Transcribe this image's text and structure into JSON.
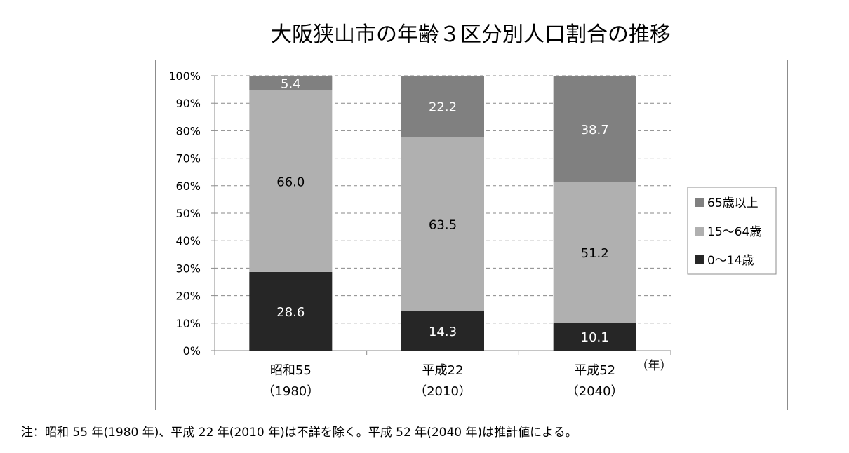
{
  "page": {
    "title": "大阪狭山市の年齢３区分別人口割合の推移",
    "note": "注：昭和 55 年(1980 年)、平成 22 年(2010 年)は不詳を除く。平成 52 年(2040 年)は推計値による。"
  },
  "chart_data": {
    "type": "bar",
    "stacked": true,
    "title": "大阪狭山市の年齢３区分別人口割合の推移",
    "xlabel": "（年）",
    "ylabel": "",
    "ylim": [
      0,
      100
    ],
    "yticks": [
      "0%",
      "10%",
      "20%",
      "30%",
      "40%",
      "50%",
      "60%",
      "70%",
      "80%",
      "90%",
      "100%"
    ],
    "grid": "horizontal dashed",
    "legend_position": "right",
    "categories": [
      {
        "line1": "昭和55",
        "line2": "（1980）"
      },
      {
        "line1": "平成22",
        "line2": "（2010）"
      },
      {
        "line1": "平成52",
        "line2": "（2040）"
      }
    ],
    "series": [
      {
        "name": "0〜14歳",
        "color": "#262626",
        "label_color": "#ffffff",
        "values": [
          28.6,
          14.3,
          10.1
        ]
      },
      {
        "name": "15〜64歳",
        "color": "#b0b0b0",
        "label_color": "#000000",
        "values": [
          66.0,
          63.5,
          51.2
        ]
      },
      {
        "name": "65歳以上",
        "color": "#808080",
        "label_color": "#ffffff",
        "values": [
          5.4,
          22.2,
          38.7
        ]
      }
    ],
    "legend_order": [
      "65歳以上",
      "15〜64歳",
      "0〜14歳"
    ]
  }
}
